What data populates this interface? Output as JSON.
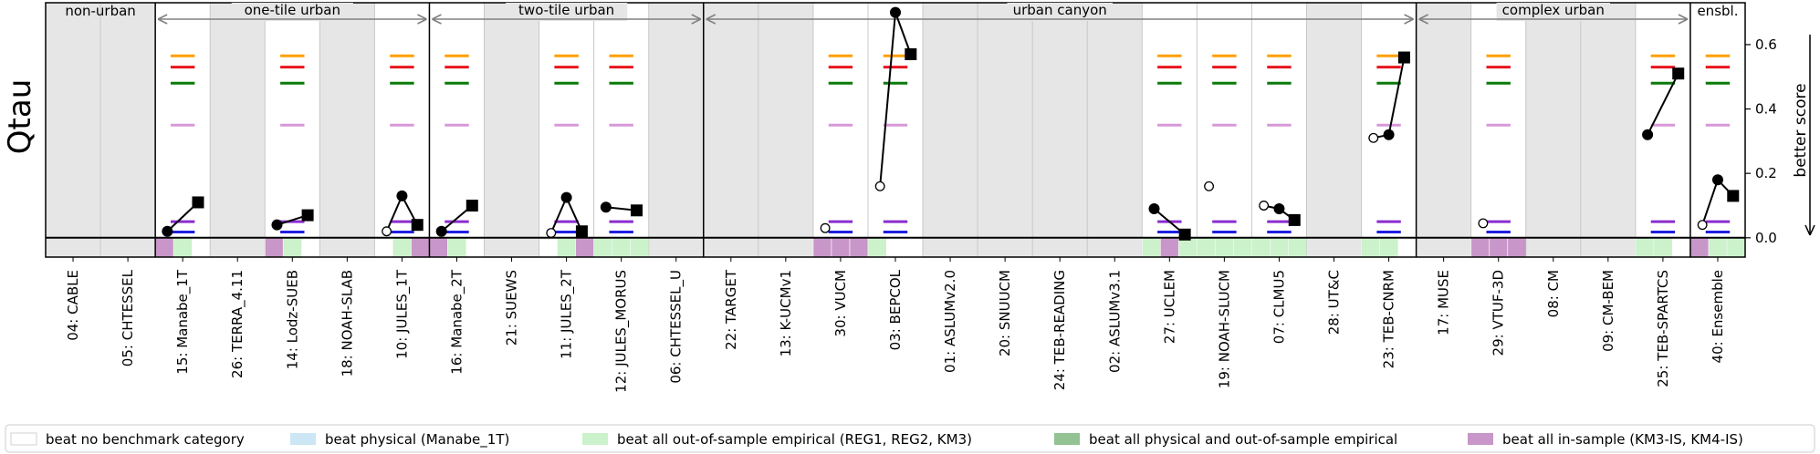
{
  "chart_data": {
    "type": "scatter",
    "ylabel": "Qtau",
    "y2label": "better score",
    "ylim": [
      -0.06,
      0.73
    ],
    "yticks": [
      0.0,
      0.2,
      0.4,
      0.6
    ],
    "ytick_labels": [
      "0.0",
      "0.2",
      "0.4",
      "0.6"
    ],
    "groups": [
      {
        "label": "non-urban",
        "start": 0,
        "end": 2
      },
      {
        "label": "one-tile urban",
        "start": 2,
        "end": 7
      },
      {
        "label": "two-tile urban",
        "start": 7,
        "end": 12
      },
      {
        "label": "urban canyon",
        "start": 12,
        "end": 25
      },
      {
        "label": "complex urban",
        "start": 25,
        "end": 30
      },
      {
        "label": "ensbl.",
        "start": 30,
        "end": 31
      }
    ],
    "models": [
      {
        "label": "04: CABLE",
        "gray": true,
        "points": [],
        "beat": [
          0,
          0,
          0
        ]
      },
      {
        "label": "05: CHTESSEL",
        "gray": true,
        "points": [],
        "beat": [
          0,
          0,
          0
        ]
      },
      {
        "label": "15: Manabe_1T",
        "gray": false,
        "points": [
          [
            0.02,
            "filled"
          ],
          [
            0.11,
            "square"
          ]
        ],
        "beat": [
          4,
          2,
          0
        ]
      },
      {
        "label": "26: TERRA_4.11",
        "gray": true,
        "points": [],
        "beat": [
          0,
          0,
          0
        ]
      },
      {
        "label": "14: Lodz-SUEB",
        "gray": false,
        "points": [
          [
            0.04,
            "filled"
          ],
          [
            0.07,
            "square"
          ]
        ],
        "beat": [
          4,
          2,
          0
        ]
      },
      {
        "label": "18: NOAH-SLAB",
        "gray": true,
        "points": [],
        "beat": [
          0,
          0,
          0
        ]
      },
      {
        "label": "10: JULES_1T",
        "gray": false,
        "points": [
          [
            0.02,
            "open"
          ],
          [
            0.13,
            "filled"
          ],
          [
            0.04,
            "square"
          ]
        ],
        "beat": [
          0,
          2,
          4
        ]
      },
      {
        "label": "16: Manabe_2T",
        "gray": false,
        "points": [
          [
            0.02,
            "filled"
          ],
          [
            0.1,
            "square"
          ]
        ],
        "beat": [
          4,
          2,
          0
        ]
      },
      {
        "label": "21: SUEWS",
        "gray": true,
        "points": [],
        "beat": [
          0,
          0,
          0
        ]
      },
      {
        "label": "11: JULES_2T",
        "gray": false,
        "points": [
          [
            0.015,
            "open"
          ],
          [
            0.125,
            "filled"
          ],
          [
            0.02,
            "square"
          ]
        ],
        "beat": [
          0,
          2,
          4
        ]
      },
      {
        "label": "12: JULES_MORUS",
        "gray": false,
        "points": [
          [
            0.095,
            "filled"
          ],
          [
            0.085,
            "square"
          ]
        ],
        "beat": [
          2,
          2,
          2
        ]
      },
      {
        "label": "06: CHTESSEL_U",
        "gray": true,
        "points": [],
        "beat": [
          0,
          0,
          0
        ]
      },
      {
        "label": "22: TARGET",
        "gray": true,
        "points": [],
        "beat": [
          0,
          0,
          0
        ]
      },
      {
        "label": "13: K-UCMv1",
        "gray": true,
        "points": [],
        "beat": [
          0,
          0,
          0
        ]
      },
      {
        "label": "30: VUCM",
        "gray": false,
        "points": [
          [
            0.03,
            "open"
          ]
        ],
        "beat": [
          4,
          4,
          4
        ]
      },
      {
        "label": "03: BEPCOL",
        "gray": false,
        "points": [
          [
            0.16,
            "open"
          ],
          [
            0.7,
            "filled"
          ],
          [
            0.57,
            "square"
          ]
        ],
        "beat": [
          2,
          0,
          0
        ]
      },
      {
        "label": "01: ASLUMv2.0",
        "gray": true,
        "points": [],
        "beat": [
          0,
          0,
          0
        ]
      },
      {
        "label": "20: SNUUCM",
        "gray": true,
        "points": [],
        "beat": [
          0,
          0,
          0
        ]
      },
      {
        "label": "24: TEB-READING",
        "gray": true,
        "points": [],
        "beat": [
          0,
          0,
          0
        ]
      },
      {
        "label": "02: ASLUMv3.1",
        "gray": true,
        "points": [],
        "beat": [
          0,
          0,
          0
        ]
      },
      {
        "label": "27: UCLEM",
        "gray": false,
        "points": [
          [
            0.09,
            "filled"
          ],
          [
            0.01,
            "square"
          ]
        ],
        "beat": [
          2,
          4,
          2
        ]
      },
      {
        "label": "19: NOAH-SLUCM",
        "gray": false,
        "points": [
          [
            0.16,
            "open"
          ]
        ],
        "beat": [
          2,
          2,
          2
        ]
      },
      {
        "label": "07: CLMU5",
        "gray": false,
        "points": [
          [
            0.1,
            "open"
          ],
          [
            0.09,
            "filled"
          ],
          [
            0.055,
            "square"
          ]
        ],
        "beat": [
          2,
          2,
          2
        ]
      },
      {
        "label": "28: UT&C",
        "gray": true,
        "points": [],
        "beat": [
          0,
          0,
          0
        ]
      },
      {
        "label": "23: TEB-CNRM",
        "gray": false,
        "points": [
          [
            0.31,
            "open"
          ],
          [
            0.32,
            "filled"
          ],
          [
            0.56,
            "square"
          ]
        ],
        "beat": [
          2,
          2,
          0
        ]
      },
      {
        "label": "17: MUSE",
        "gray": true,
        "points": [],
        "beat": [
          0,
          0,
          0
        ]
      },
      {
        "label": "29: VTUF-3D",
        "gray": false,
        "points": [
          [
            0.045,
            "open"
          ]
        ],
        "beat": [
          4,
          4,
          4
        ]
      },
      {
        "label": "08: CM",
        "gray": true,
        "points": [],
        "beat": [
          0,
          0,
          0
        ]
      },
      {
        "label": "09: CM-BEM",
        "gray": true,
        "points": [],
        "beat": [
          0,
          0,
          0
        ]
      },
      {
        "label": "25: TEB-SPARTCS",
        "gray": false,
        "points": [
          [
            0.32,
            "filled"
          ],
          [
            0.51,
            "square"
          ]
        ],
        "beat": [
          2,
          2,
          0
        ]
      },
      {
        "label": "40: Ensemble",
        "gray": false,
        "points": [
          [
            0.04,
            "open"
          ],
          [
            0.18,
            "filled"
          ],
          [
            0.13,
            "square"
          ]
        ],
        "beat": [
          4,
          2,
          2
        ]
      }
    ],
    "benchmarks": [
      {
        "value": 0.565,
        "color": "#ff9f00"
      },
      {
        "value": 0.53,
        "color": "#e8141e"
      },
      {
        "value": 0.48,
        "color": "#0a7a0a"
      },
      {
        "value": 0.35,
        "color": "#d898d8"
      },
      {
        "value": 0.05,
        "color": "#8b2ccf"
      },
      {
        "value": 0.018,
        "color": "#1f1fe0"
      }
    ],
    "legend_placement": "bottom",
    "legend": [
      {
        "label": "beat no benchmark category",
        "color": "#ffffff"
      },
      {
        "label": "beat physical (Manabe_1T)",
        "color": "#cce6f6"
      },
      {
        "label": "beat all out-of-sample empirical (REG1, REG2, KM3)",
        "color": "#cbf2cb"
      },
      {
        "label": "beat all physical and out-of-sample empirical",
        "color": "#93c293"
      },
      {
        "label": "beat all in-sample (KM3-IS, KM4-IS)",
        "color": "#c896c8"
      }
    ]
  }
}
